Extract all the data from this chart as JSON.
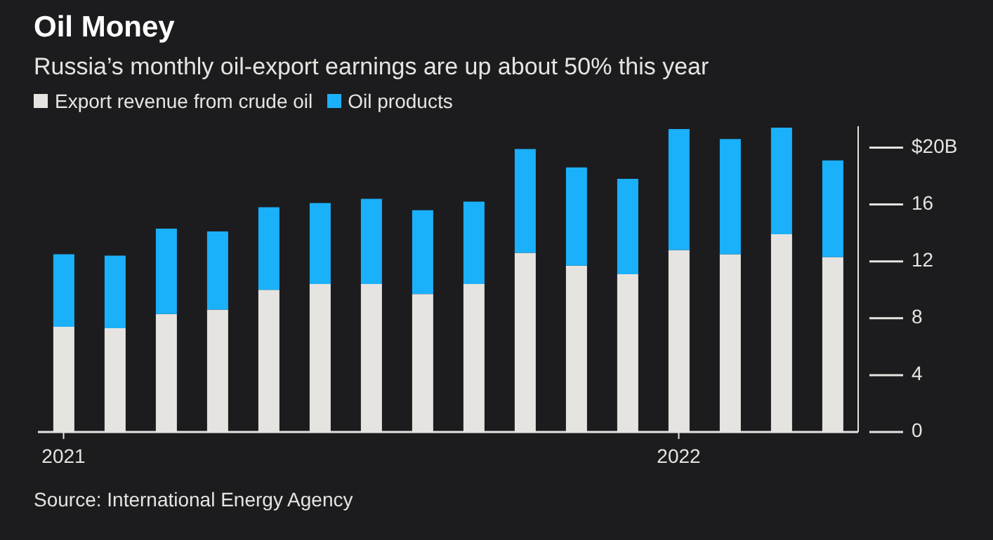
{
  "chart_data": {
    "type": "bar",
    "title": "Oil Money",
    "subtitle": "Russia’s monthly oil-export earnings are up about 50% this year",
    "categories": [
      "2021",
      null,
      null,
      null,
      null,
      null,
      null,
      null,
      null,
      null,
      null,
      null,
      "2022",
      null,
      null,
      null
    ],
    "series": [
      {
        "name": "Export revenue from crude oil",
        "color": "#e6e4e1",
        "values": [
          7.4,
          7.3,
          8.3,
          8.6,
          10.0,
          10.4,
          10.4,
          9.7,
          10.4,
          12.6,
          11.7,
          11.1,
          12.8,
          12.5,
          13.9,
          12.3
        ]
      },
      {
        "name": "Oil products",
        "color": "#1bb0fa",
        "values": [
          5.1,
          5.1,
          6.0,
          5.5,
          5.8,
          5.7,
          6.0,
          5.9,
          5.8,
          7.3,
          6.9,
          6.7,
          8.5,
          8.1,
          7.5,
          6.8
        ]
      }
    ],
    "stacked": true,
    "ylim": [
      0,
      21.5
    ],
    "yticks": [
      0,
      4,
      8,
      12,
      16,
      {
        "value": 20,
        "label": "$20B"
      }
    ],
    "legend": "top left",
    "annotations": [
      "Source: International Energy Agency"
    ]
  }
}
